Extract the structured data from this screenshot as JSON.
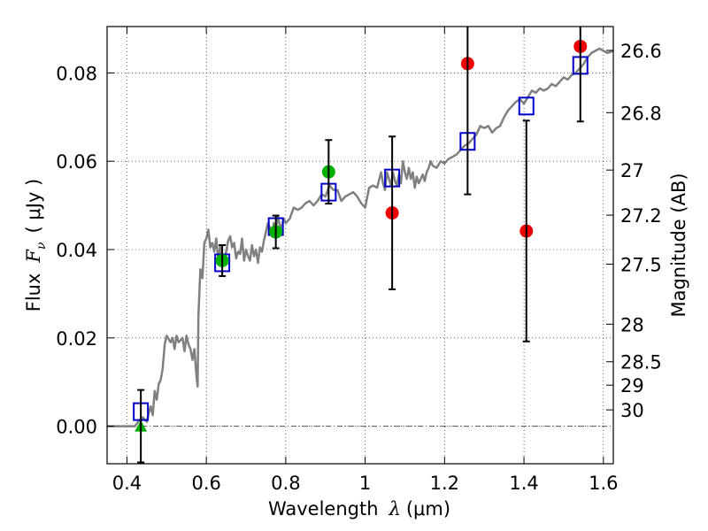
{
  "chart_data": {
    "type": "scatter",
    "xlabel": "Wavelength",
    "xlabel_symbol": "λ",
    "xlabel_unit": "(μm)",
    "ylabel": "Flux",
    "ylabel_symbol": "F",
    "ylabel_sub": "ν",
    "ylabel_unit": "( μJy )",
    "right_label": "Magnitude (AB)",
    "xlim": [
      0.35,
      1.625
    ],
    "ylim": [
      -0.0085,
      0.0905
    ],
    "grid": true,
    "x_ticks": [
      {
        "value": 0.4,
        "label": "0.4"
      },
      {
        "value": 0.6,
        "label": "0.6"
      },
      {
        "value": 0.8,
        "label": "0.8"
      },
      {
        "value": 1.0,
        "label": "1"
      },
      {
        "value": 1.2,
        "label": "1.2"
      },
      {
        "value": 1.4,
        "label": "1.4"
      },
      {
        "value": 1.6,
        "label": "1.6"
      }
    ],
    "y_ticks": [
      {
        "value": 0.0,
        "label": "0.00"
      },
      {
        "value": 0.02,
        "label": "0.02"
      },
      {
        "value": 0.04,
        "label": "0.04"
      },
      {
        "value": 0.06,
        "label": "0.06"
      },
      {
        "value": 0.08,
        "label": "0.08"
      }
    ],
    "magnitude_ticks": [
      {
        "flux": 0.0851,
        "label": "26.6"
      },
      {
        "flux": 0.071,
        "label": "26.8"
      },
      {
        "flux": 0.058,
        "label": "27"
      },
      {
        "flux": 0.0478,
        "label": "27.2"
      },
      {
        "flux": 0.0367,
        "label": "27.5"
      },
      {
        "flux": 0.0231,
        "label": "28"
      },
      {
        "flux": 0.0146,
        "label": "28.5"
      },
      {
        "flux": 0.0093,
        "label": "29"
      },
      {
        "flux": 0.0037,
        "label": "30"
      }
    ],
    "model_spectrum": {
      "color": "#808080",
      "points": [
        [
          0.35,
          0.0
        ],
        [
          0.4,
          0.0
        ],
        [
          0.42,
          0.0
        ],
        [
          0.43,
          0.0012
        ],
        [
          0.44,
          0.002
        ],
        [
          0.45,
          0.001
        ],
        [
          0.455,
          0.003
        ],
        [
          0.46,
          0.0045
        ],
        [
          0.465,
          0.0025
        ],
        [
          0.47,
          0.008
        ],
        [
          0.475,
          0.006
        ],
        [
          0.48,
          0.0095
        ],
        [
          0.485,
          0.0105
        ],
        [
          0.49,
          0.013
        ],
        [
          0.495,
          0.0185
        ],
        [
          0.5,
          0.0205
        ],
        [
          0.51,
          0.019
        ],
        [
          0.515,
          0.02
        ],
        [
          0.52,
          0.0175
        ],
        [
          0.525,
          0.0205
        ],
        [
          0.53,
          0.019
        ],
        [
          0.54,
          0.02
        ],
        [
          0.545,
          0.017
        ],
        [
          0.55,
          0.0205
        ],
        [
          0.555,
          0.0185
        ],
        [
          0.56,
          0.0175
        ],
        [
          0.565,
          0.015
        ],
        [
          0.57,
          0.0175
        ],
        [
          0.575,
          0.0115
        ],
        [
          0.578,
          0.009
        ],
        [
          0.58,
          0.025
        ],
        [
          0.585,
          0.0355
        ],
        [
          0.59,
          0.0335
        ],
        [
          0.595,
          0.0415
        ],
        [
          0.6,
          0.0425
        ],
        [
          0.605,
          0.0445
        ],
        [
          0.61,
          0.0405
        ],
        [
          0.615,
          0.0415
        ],
        [
          0.62,
          0.0395
        ],
        [
          0.625,
          0.0425
        ],
        [
          0.63,
          0.0375
        ],
        [
          0.635,
          0.041
        ],
        [
          0.64,
          0.0365
        ],
        [
          0.645,
          0.038
        ],
        [
          0.65,
          0.0395
        ],
        [
          0.655,
          0.042
        ],
        [
          0.66,
          0.043
        ],
        [
          0.665,
          0.0405
        ],
        [
          0.67,
          0.0415
        ],
        [
          0.675,
          0.038
        ],
        [
          0.68,
          0.0395
        ],
        [
          0.685,
          0.039
        ],
        [
          0.69,
          0.0425
        ],
        [
          0.695,
          0.0375
        ],
        [
          0.7,
          0.04
        ],
        [
          0.705,
          0.0385
        ],
        [
          0.71,
          0.0375
        ],
        [
          0.715,
          0.041
        ],
        [
          0.72,
          0.0385
        ],
        [
          0.725,
          0.04
        ],
        [
          0.73,
          0.037
        ],
        [
          0.735,
          0.0405
        ],
        [
          0.74,
          0.0395
        ],
        [
          0.745,
          0.042
        ],
        [
          0.75,
          0.044
        ],
        [
          0.755,
          0.046
        ],
        [
          0.76,
          0.045
        ],
        [
          0.765,
          0.043
        ],
        [
          0.77,
          0.046
        ],
        [
          0.775,
          0.0445
        ],
        [
          0.78,
          0.0475
        ],
        [
          0.785,
          0.0455
        ],
        [
          0.79,
          0.045
        ],
        [
          0.795,
          0.047
        ],
        [
          0.8,
          0.046
        ],
        [
          0.81,
          0.047
        ],
        [
          0.82,
          0.0495
        ],
        [
          0.83,
          0.049
        ],
        [
          0.84,
          0.0495
        ],
        [
          0.85,
          0.0505
        ],
        [
          0.86,
          0.051
        ],
        [
          0.87,
          0.05
        ],
        [
          0.88,
          0.051
        ],
        [
          0.89,
          0.0525
        ],
        [
          0.9,
          0.052
        ],
        [
          0.91,
          0.0545
        ],
        [
          0.92,
          0.0535
        ],
        [
          0.93,
          0.0535
        ],
        [
          0.94,
          0.051
        ],
        [
          0.95,
          0.052
        ],
        [
          0.96,
          0.0525
        ],
        [
          0.97,
          0.053
        ],
        [
          0.98,
          0.052
        ],
        [
          0.99,
          0.0505
        ],
        [
          1.0,
          0.0495
        ],
        [
          1.01,
          0.054
        ],
        [
          1.02,
          0.0545
        ],
        [
          1.03,
          0.054
        ],
        [
          1.04,
          0.0575
        ],
        [
          1.045,
          0.055
        ],
        [
          1.05,
          0.0535
        ],
        [
          1.055,
          0.0575
        ],
        [
          1.06,
          0.056
        ],
        [
          1.065,
          0.0545
        ],
        [
          1.07,
          0.0575
        ],
        [
          1.075,
          0.0555
        ],
        [
          1.08,
          0.0545
        ],
        [
          1.085,
          0.057
        ],
        [
          1.09,
          0.055
        ],
        [
          1.095,
          0.06
        ],
        [
          1.1,
          0.0575
        ],
        [
          1.105,
          0.056
        ],
        [
          1.11,
          0.0585
        ],
        [
          1.115,
          0.056
        ],
        [
          1.12,
          0.0575
        ],
        [
          1.125,
          0.054
        ],
        [
          1.13,
          0.0565
        ],
        [
          1.135,
          0.055
        ],
        [
          1.14,
          0.056
        ],
        [
          1.145,
          0.057
        ],
        [
          1.15,
          0.0555
        ],
        [
          1.155,
          0.0575
        ],
        [
          1.16,
          0.0585
        ],
        [
          1.165,
          0.06
        ],
        [
          1.17,
          0.059
        ],
        [
          1.18,
          0.0585
        ],
        [
          1.19,
          0.06
        ],
        [
          1.2,
          0.0595
        ],
        [
          1.21,
          0.0605
        ],
        [
          1.22,
          0.061
        ],
        [
          1.23,
          0.0615
        ],
        [
          1.24,
          0.0625
        ],
        [
          1.25,
          0.0635
        ],
        [
          1.26,
          0.064
        ],
        [
          1.27,
          0.065
        ],
        [
          1.28,
          0.066
        ],
        [
          1.29,
          0.068
        ],
        [
          1.3,
          0.0675
        ],
        [
          1.31,
          0.068
        ],
        [
          1.32,
          0.0665
        ],
        [
          1.33,
          0.0675
        ],
        [
          1.34,
          0.068
        ],
        [
          1.35,
          0.07
        ],
        [
          1.36,
          0.0715
        ],
        [
          1.37,
          0.0725
        ],
        [
          1.38,
          0.0735
        ],
        [
          1.39,
          0.074
        ],
        [
          1.4,
          0.073
        ],
        [
          1.41,
          0.0745
        ],
        [
          1.42,
          0.076
        ],
        [
          1.43,
          0.0755
        ],
        [
          1.44,
          0.0765
        ],
        [
          1.45,
          0.076
        ],
        [
          1.46,
          0.0765
        ],
        [
          1.47,
          0.0775
        ],
        [
          1.48,
          0.077
        ],
        [
          1.49,
          0.078
        ],
        [
          1.5,
          0.079
        ],
        [
          1.51,
          0.0785
        ],
        [
          1.52,
          0.0795
        ],
        [
          1.53,
          0.08
        ],
        [
          1.54,
          0.081
        ],
        [
          1.55,
          0.082
        ],
        [
          1.56,
          0.0835
        ],
        [
          1.57,
          0.0845
        ],
        [
          1.58,
          0.085
        ],
        [
          1.59,
          0.0855
        ],
        [
          1.6,
          0.085
        ],
        [
          1.61,
          0.0845
        ],
        [
          1.625,
          0.085
        ]
      ]
    },
    "series": [
      {
        "marker": "square-open",
        "color": "#0000cc",
        "points": [
          {
            "x": 0.435,
            "y": 0.0033
          },
          {
            "x": 0.64,
            "y": 0.037
          },
          {
            "x": 0.775,
            "y": 0.0452
          },
          {
            "x": 0.908,
            "y": 0.053
          },
          {
            "x": 1.068,
            "y": 0.0562
          },
          {
            "x": 1.258,
            "y": 0.0645
          },
          {
            "x": 1.406,
            "y": 0.0725
          },
          {
            "x": 1.542,
            "y": 0.0817
          }
        ]
      },
      {
        "marker": "circle",
        "color": "#00b000",
        "points": [
          {
            "x": 0.64,
            "y": 0.0375,
            "err": 0.0035
          },
          {
            "x": 0.775,
            "y": 0.044,
            "err": 0.0037
          },
          {
            "x": 0.908,
            "y": 0.0576,
            "err": 0.0072
          }
        ]
      },
      {
        "marker": "triangle",
        "color": "#00b000",
        "points": [
          {
            "x": 0.435,
            "y": 0.0,
            "err": 0.0082
          }
        ]
      },
      {
        "marker": "circle",
        "color": "#ee0000",
        "points": [
          {
            "x": 1.068,
            "y": 0.0483,
            "err": 0.0173
          },
          {
            "x": 1.258,
            "y": 0.0821,
            "err": 0.0296
          },
          {
            "x": 1.406,
            "y": 0.0442,
            "err": 0.025
          },
          {
            "x": 1.542,
            "y": 0.086,
            "err": 0.017
          }
        ]
      }
    ]
  }
}
